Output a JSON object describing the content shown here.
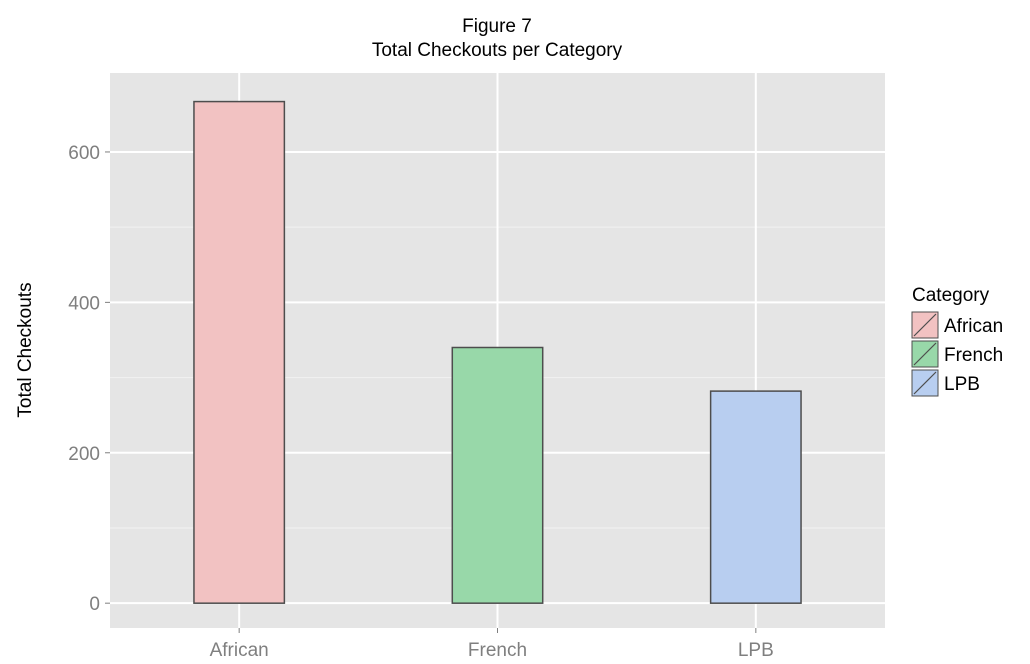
{
  "chart_data": {
    "type": "bar",
    "title_line1": "Figure 7",
    "title_line2": "Total Checkouts per Category",
    "xlabel": "",
    "ylabel": "Total Checkouts",
    "categories": [
      "African",
      "French",
      "LPB"
    ],
    "values": [
      667,
      340,
      282
    ],
    "colors": [
      "#f2c2c2",
      "#98d8a9",
      "#b8cef0"
    ],
    "ylim": [
      -33,
      705
    ],
    "yticks": [
      0,
      200,
      400,
      600
    ],
    "grid": true,
    "legend": {
      "title": "Category",
      "position": "right",
      "entries": [
        "African",
        "French",
        "LPB"
      ]
    }
  }
}
